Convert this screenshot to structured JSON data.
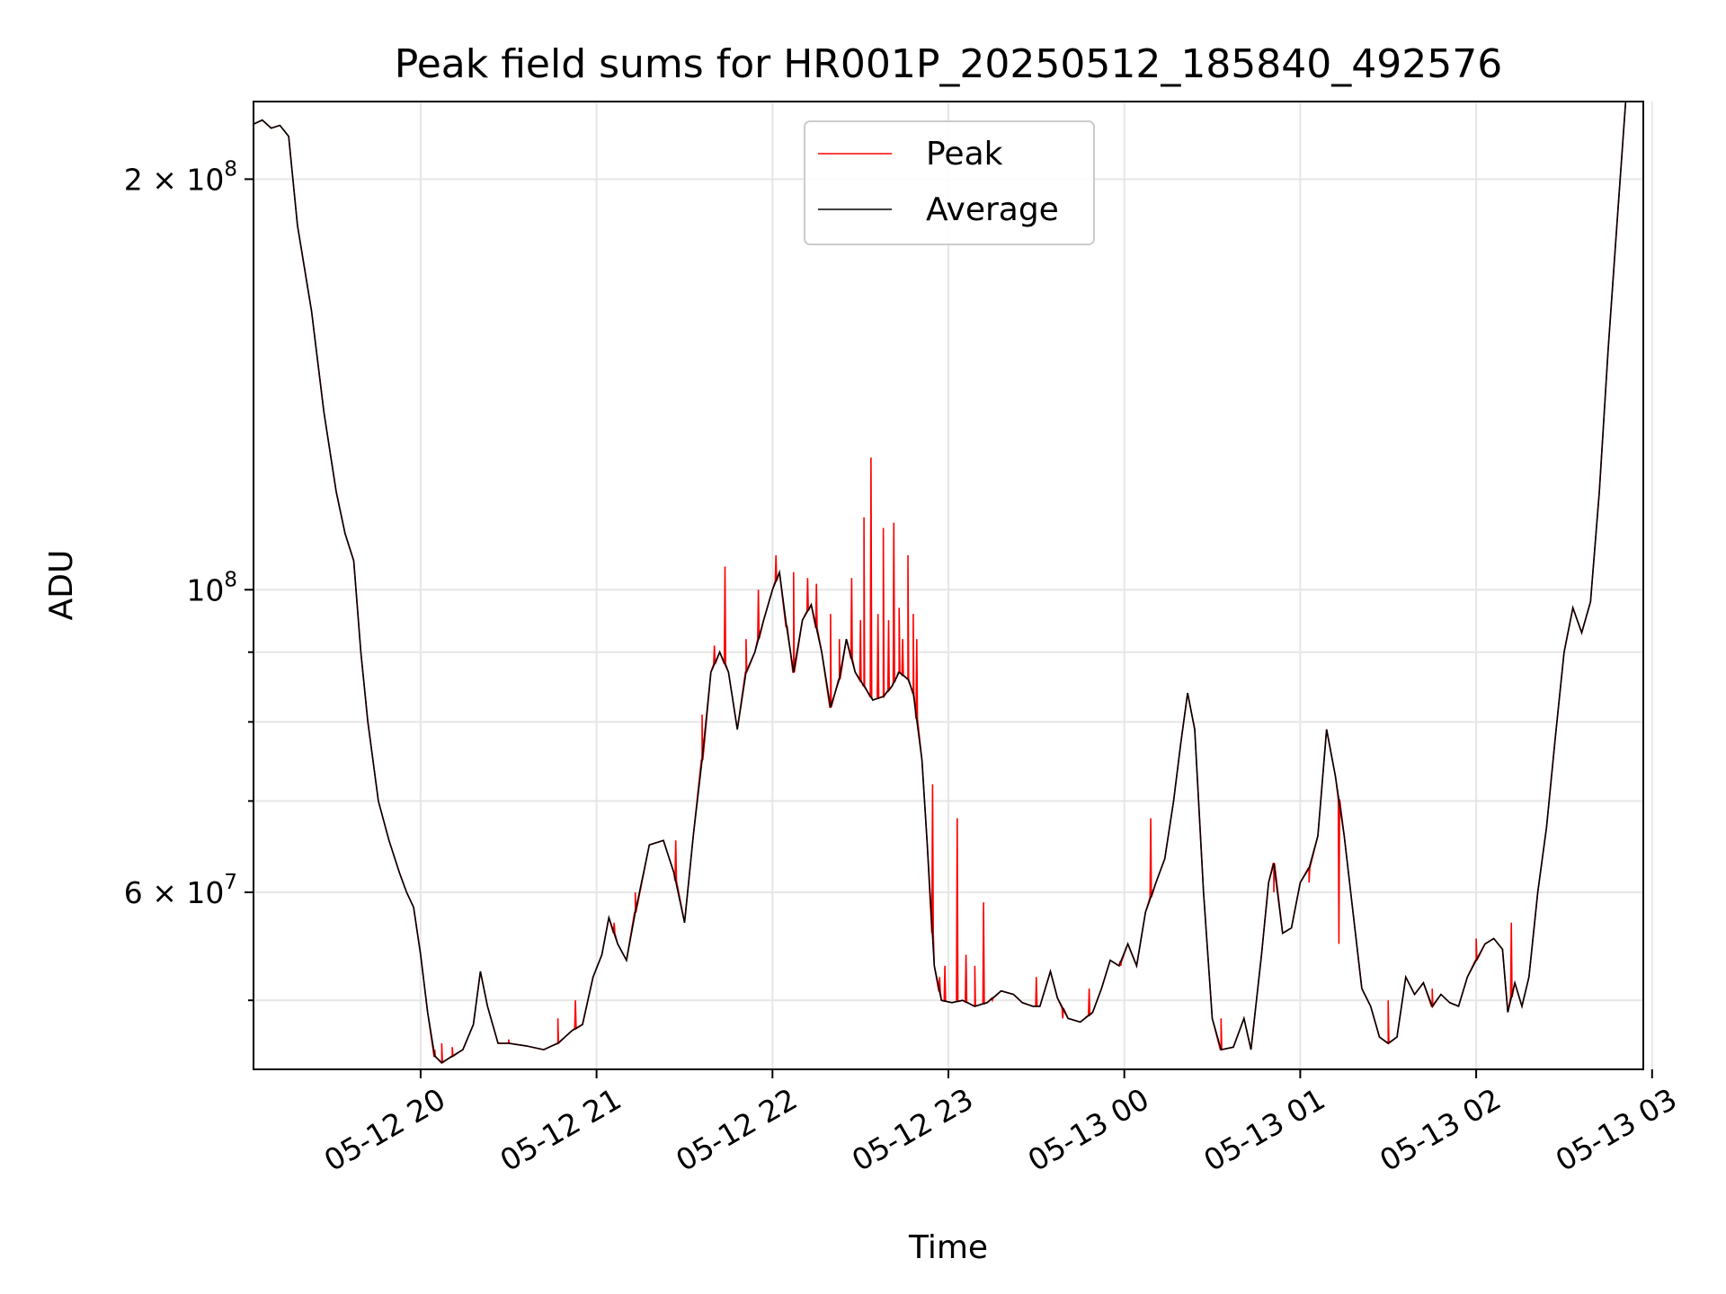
{
  "chart_data": {
    "type": "line",
    "title": "Peak field sums for HR001P_20250512_185840_492576",
    "xlabel": "Time",
    "ylabel": "ADU",
    "yscale": "log",
    "grid": true,
    "legend_position": "top-center",
    "x_ticks": [
      {
        "t": 1.0,
        "label": "05-12 20"
      },
      {
        "t": 2.0,
        "label": "05-12 21"
      },
      {
        "t": 3.0,
        "label": "05-12 22"
      },
      {
        "t": 4.0,
        "label": "05-12 23"
      },
      {
        "t": 5.0,
        "label": "05-13 00"
      },
      {
        "t": 6.0,
        "label": "05-13 01"
      },
      {
        "t": 7.0,
        "label": "05-13 02"
      },
      {
        "t": 8.0,
        "label": "05-13 03"
      }
    ],
    "y_major_ticks": [
      {
        "v": 200000000,
        "base": "2 × 10",
        "exp": "8"
      },
      {
        "v": 100000000,
        "base": "10",
        "exp": "8"
      },
      {
        "v": 60000000,
        "base": "6 × 10",
        "exp": "7"
      }
    ],
    "y_minor_ticks": [
      50000000,
      70000000,
      80000000,
      90000000
    ],
    "x_range": [
      "05-12 19:03",
      "05-13 02:57"
    ],
    "ylim": [
      44500000,
      228000000
    ],
    "series": [
      {
        "name": "Peak",
        "color": "#ff0000",
        "spikes": [
          [
            1.08,
            46000000
          ],
          [
            1.12,
            46500000
          ],
          [
            1.18,
            46200000
          ],
          [
            1.5,
            46800000
          ],
          [
            1.78,
            48500000
          ],
          [
            1.88,
            50000000
          ],
          [
            2.1,
            57000000
          ],
          [
            2.22,
            60000000
          ],
          [
            2.45,
            65500000
          ],
          [
            2.6,
            81000000
          ],
          [
            2.67,
            91000000
          ],
          [
            2.73,
            104000000
          ],
          [
            2.85,
            92000000
          ],
          [
            2.92,
            100000000
          ],
          [
            3.02,
            106000000
          ],
          [
            3.08,
            94000000
          ],
          [
            3.12,
            103000000
          ],
          [
            3.2,
            102000000
          ],
          [
            3.25,
            101000000
          ],
          [
            3.33,
            96000000
          ],
          [
            3.38,
            92000000
          ],
          [
            3.45,
            102000000
          ],
          [
            3.5,
            95000000
          ],
          [
            3.52,
            113000000
          ],
          [
            3.56,
            125000000
          ],
          [
            3.6,
            96000000
          ],
          [
            3.63,
            111000000
          ],
          [
            3.66,
            95000000
          ],
          [
            3.69,
            112000000
          ],
          [
            3.72,
            97000000
          ],
          [
            3.74,
            92000000
          ],
          [
            3.77,
            106000000
          ],
          [
            3.8,
            96000000
          ],
          [
            3.82,
            92000000
          ],
          [
            3.91,
            72000000
          ],
          [
            3.95,
            52000000
          ],
          [
            3.98,
            53000000
          ],
          [
            4.05,
            68000000
          ],
          [
            4.1,
            54000000
          ],
          [
            4.15,
            53000000
          ],
          [
            4.2,
            59000000
          ],
          [
            4.25,
            50000000
          ],
          [
            4.5,
            52000000
          ],
          [
            4.65,
            48500000
          ],
          [
            4.8,
            51000000
          ],
          [
            4.98,
            53000000
          ],
          [
            5.15,
            68000000
          ],
          [
            5.55,
            48500000
          ],
          [
            5.85,
            60000000
          ],
          [
            6.05,
            61000000
          ],
          [
            6.22,
            55000000
          ],
          [
            6.5,
            50000000
          ],
          [
            6.75,
            51000000
          ],
          [
            7.0,
            55500000
          ],
          [
            7.2,
            57000000
          ]
        ]
      },
      {
        "name": "Average",
        "color": "#000000",
        "points": [
          [
            0.0,
            218000000
          ],
          [
            0.1,
            221000000
          ],
          [
            0.15,
            218000000
          ],
          [
            0.2,
            219000000
          ],
          [
            0.25,
            215000000
          ],
          [
            0.3,
            185000000
          ],
          [
            0.38,
            160000000
          ],
          [
            0.45,
            135000000
          ],
          [
            0.52,
            118000000
          ],
          [
            0.57,
            110000000
          ],
          [
            0.62,
            105000000
          ],
          [
            0.66,
            90000000
          ],
          [
            0.7,
            80000000
          ],
          [
            0.76,
            70000000
          ],
          [
            0.82,
            65500000
          ],
          [
            0.88,
            62000000
          ],
          [
            0.92,
            60000000
          ],
          [
            0.96,
            58500000
          ],
          [
            1.0,
            54000000
          ],
          [
            1.04,
            49000000
          ],
          [
            1.08,
            45500000
          ],
          [
            1.12,
            45000000
          ],
          [
            1.18,
            45500000
          ],
          [
            1.24,
            46000000
          ],
          [
            1.3,
            48000000
          ],
          [
            1.34,
            52500000
          ],
          [
            1.38,
            49500000
          ],
          [
            1.44,
            46500000
          ],
          [
            1.5,
            46500000
          ],
          [
            1.6,
            46300000
          ],
          [
            1.7,
            46000000
          ],
          [
            1.78,
            46500000
          ],
          [
            1.86,
            47500000
          ],
          [
            1.92,
            48000000
          ],
          [
            1.98,
            52000000
          ],
          [
            2.03,
            54000000
          ],
          [
            2.07,
            57500000
          ],
          [
            2.12,
            55000000
          ],
          [
            2.17,
            53500000
          ],
          [
            2.22,
            58000000
          ],
          [
            2.3,
            65000000
          ],
          [
            2.38,
            65500000
          ],
          [
            2.44,
            62000000
          ],
          [
            2.5,
            57000000
          ],
          [
            2.55,
            66000000
          ],
          [
            2.6,
            75000000
          ],
          [
            2.65,
            87000000
          ],
          [
            2.7,
            90000000
          ],
          [
            2.75,
            87000000
          ],
          [
            2.8,
            79000000
          ],
          [
            2.85,
            87000000
          ],
          [
            2.9,
            90000000
          ],
          [
            2.95,
            95000000
          ],
          [
            3.0,
            100000000
          ],
          [
            3.04,
            103000000
          ],
          [
            3.08,
            94000000
          ],
          [
            3.12,
            87000000
          ],
          [
            3.17,
            95000000
          ],
          [
            3.22,
            97500000
          ],
          [
            3.28,
            90000000
          ],
          [
            3.33,
            82000000
          ],
          [
            3.38,
            86000000
          ],
          [
            3.42,
            92000000
          ],
          [
            3.47,
            87000000
          ],
          [
            3.52,
            85000000
          ],
          [
            3.57,
            83000000
          ],
          [
            3.63,
            83500000
          ],
          [
            3.68,
            85000000
          ],
          [
            3.72,
            87000000
          ],
          [
            3.77,
            86000000
          ],
          [
            3.8,
            84000000
          ],
          [
            3.85,
            75000000
          ],
          [
            3.88,
            65000000
          ],
          [
            3.92,
            53000000
          ],
          [
            3.96,
            50000000
          ],
          [
            4.02,
            49800000
          ],
          [
            4.08,
            50000000
          ],
          [
            4.15,
            49500000
          ],
          [
            4.22,
            49800000
          ],
          [
            4.3,
            50800000
          ],
          [
            4.37,
            50500000
          ],
          [
            4.42,
            49800000
          ],
          [
            4.48,
            49500000
          ],
          [
            4.52,
            49500000
          ],
          [
            4.58,
            52500000
          ],
          [
            4.62,
            50200000
          ],
          [
            4.68,
            48500000
          ],
          [
            4.75,
            48200000
          ],
          [
            4.82,
            49000000
          ],
          [
            4.87,
            51000000
          ],
          [
            4.92,
            53500000
          ],
          [
            4.97,
            53000000
          ],
          [
            5.02,
            55000000
          ],
          [
            5.07,
            53000000
          ],
          [
            5.12,
            58000000
          ],
          [
            5.18,
            61000000
          ],
          [
            5.23,
            63500000
          ],
          [
            5.28,
            70000000
          ],
          [
            5.32,
            77000000
          ],
          [
            5.36,
            84000000
          ],
          [
            5.4,
            79000000
          ],
          [
            5.45,
            60000000
          ],
          [
            5.5,
            48500000
          ],
          [
            5.55,
            46000000
          ],
          [
            5.62,
            46200000
          ],
          [
            5.68,
            48500000
          ],
          [
            5.72,
            46000000
          ],
          [
            5.78,
            54000000
          ],
          [
            5.82,
            61000000
          ],
          [
            5.85,
            63000000
          ],
          [
            5.9,
            56000000
          ],
          [
            5.95,
            56500000
          ],
          [
            6.0,
            61000000
          ],
          [
            6.05,
            62500000
          ],
          [
            6.1,
            66000000
          ],
          [
            6.15,
            79000000
          ],
          [
            6.2,
            73000000
          ],
          [
            6.25,
            66000000
          ],
          [
            6.3,
            58000000
          ],
          [
            6.35,
            51000000
          ],
          [
            6.4,
            49500000
          ],
          [
            6.45,
            47000000
          ],
          [
            6.5,
            46500000
          ],
          [
            6.55,
            47000000
          ],
          [
            6.6,
            52000000
          ],
          [
            6.65,
            50500000
          ],
          [
            6.7,
            51500000
          ],
          [
            6.75,
            49500000
          ],
          [
            6.8,
            50500000
          ],
          [
            6.85,
            49800000
          ],
          [
            6.9,
            49500000
          ],
          [
            6.95,
            52000000
          ],
          [
            7.0,
            53500000
          ],
          [
            7.05,
            55000000
          ],
          [
            7.1,
            55500000
          ],
          [
            7.15,
            54500000
          ],
          [
            7.18,
            49000000
          ],
          [
            7.22,
            51500000
          ],
          [
            7.26,
            49500000
          ],
          [
            7.3,
            52000000
          ],
          [
            7.35,
            60000000
          ],
          [
            7.4,
            67000000
          ],
          [
            7.45,
            78000000
          ],
          [
            7.5,
            90000000
          ],
          [
            7.55,
            97000000
          ],
          [
            7.6,
            93000000
          ],
          [
            7.65,
            98000000
          ],
          [
            7.7,
            118000000
          ],
          [
            7.75,
            150000000
          ],
          [
            7.8,
            185000000
          ],
          [
            7.85,
            228000000
          ]
        ]
      }
    ]
  }
}
